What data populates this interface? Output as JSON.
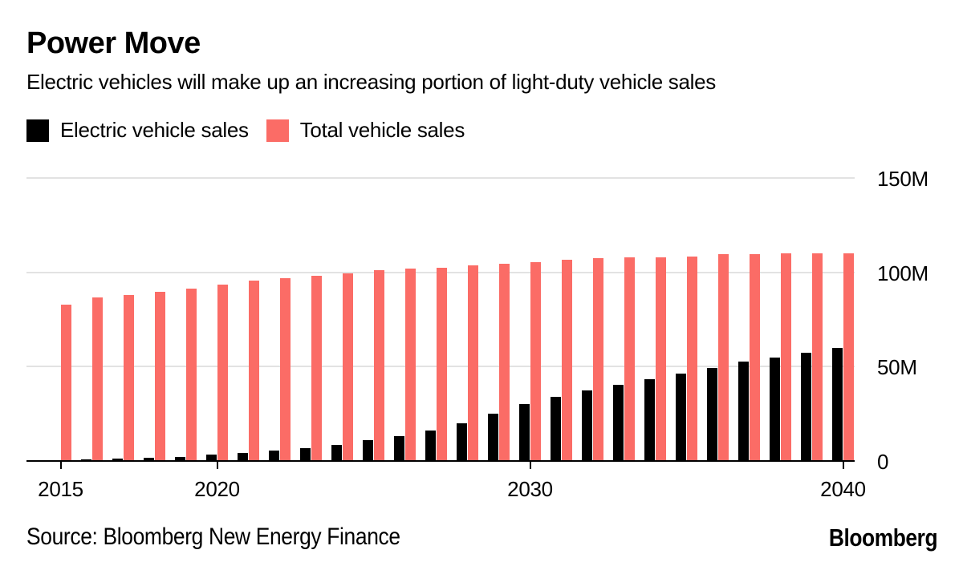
{
  "header": {
    "title": "Power Move",
    "subtitle": "Electric vehicles will make up an increasing portion of light-duty vehicle sales"
  },
  "legend": [
    {
      "label": "Electric vehicle sales",
      "color": "#000000"
    },
    {
      "label": "Total vehicle sales",
      "color": "#FB6C66"
    }
  ],
  "footer": {
    "source": "Source: Bloomberg New Energy Finance",
    "brand": "Bloomberg"
  },
  "chart_data": {
    "type": "bar",
    "title": "Power Move",
    "subtitle": "Electric vehicles will make up an increasing portion of light-duty vehicle sales",
    "unit": "million vehicles per year",
    "categories": [
      2015,
      2016,
      2017,
      2018,
      2019,
      2020,
      2021,
      2022,
      2023,
      2024,
      2025,
      2026,
      2027,
      2028,
      2029,
      2030,
      2031,
      2032,
      2033,
      2034,
      2035,
      2036,
      2037,
      2038,
      2039,
      2040
    ],
    "series": [
      {
        "name": "Electric vehicle sales",
        "color": "#000000",
        "values": [
          0.4,
          0.8,
          1.2,
          1.7,
          2.3,
          3.2,
          4.4,
          5.4,
          6.6,
          8.5,
          11,
          13,
          16,
          20,
          25,
          30,
          34,
          37.5,
          40.5,
          43.5,
          46.5,
          49.5,
          52.5,
          55,
          57.5,
          60
        ]
      },
      {
        "name": "Total vehicle sales",
        "color": "#FB6C66",
        "values": [
          83,
          86.5,
          88,
          89.5,
          91.5,
          93.5,
          95.5,
          97,
          98,
          99.5,
          101,
          102,
          102.5,
          103.5,
          104.5,
          105.5,
          106.5,
          107.5,
          108,
          108,
          108.5,
          109.5,
          109.5,
          110,
          110,
          110
        ]
      }
    ],
    "ylim": [
      0,
      150
    ],
    "yticks": [
      {
        "value": 0,
        "label": "0"
      },
      {
        "value": 50,
        "label": "50M"
      },
      {
        "value": 100,
        "label": "100M"
      },
      {
        "value": 150,
        "label": "150M"
      }
    ],
    "xticks": [
      {
        "value": 2015,
        "label": "2015"
      },
      {
        "value": 2020,
        "label": "2020"
      },
      {
        "value": 2030,
        "label": "2030"
      },
      {
        "value": 2040,
        "label": "2040"
      }
    ],
    "grid": "horizontal",
    "grid_color": "#e2e2e2",
    "legend_position": "top-left",
    "y_axis_side": "right"
  }
}
